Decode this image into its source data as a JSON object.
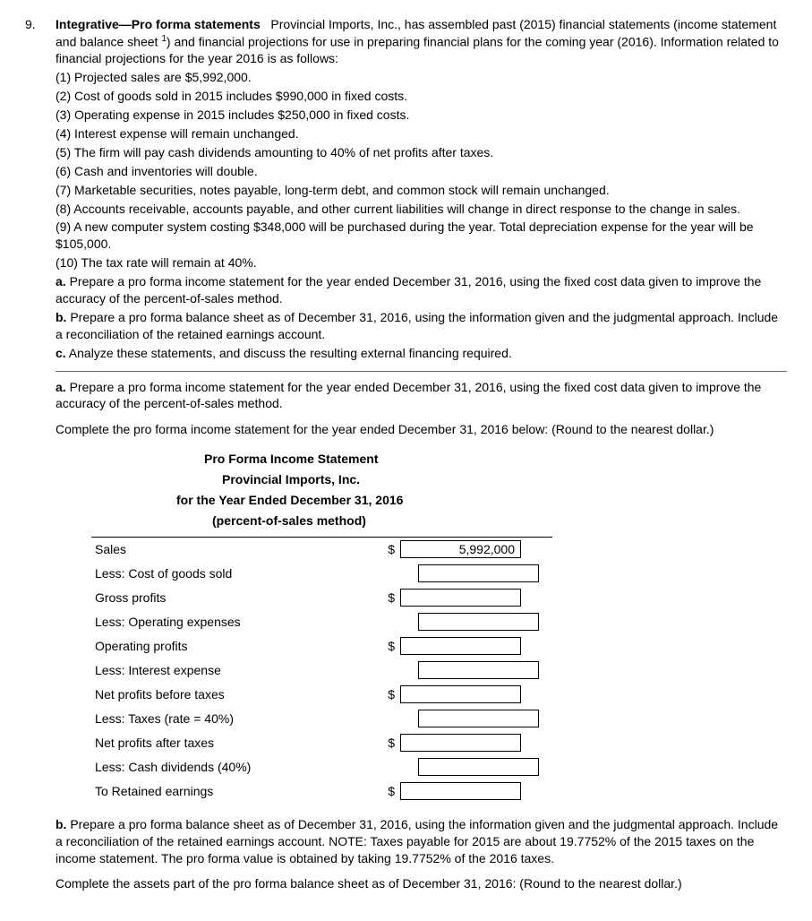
{
  "problem": {
    "number": "9.",
    "title": "Integrative—Pro forma statements",
    "intro_a": "Provincial Imports, Inc., has assembled past (2015) financial statements (income statement and balance sheet",
    "sup": "1",
    "intro_b": ") and financial projections for use in preparing financial plans for the coming year (2016). Information related to financial projections for the year 2016 is as follows:",
    "lines": [
      "(1) Projected sales are $5,992,000.",
      "(2) Cost of goods sold in 2015 includes $990,000 in fixed costs.",
      "(3) Operating expense in 2015 includes $250,000 in fixed costs.",
      "(4) Interest expense will remain unchanged.",
      "(5) The firm will pay cash dividends amounting to 40% of net profits after taxes.",
      "(6) Cash and inventories will double.",
      "(7) Marketable securities, notes payable, long-term debt, and common stock will remain unchanged.",
      "(8) Accounts receivable, accounts payable, and other current liabilities will change in direct response to the change in sales.",
      "(9) A new computer system costing $348,000 will be purchased during the year.  Total depreciation expense for the year will be $105,000.",
      "(10) The tax rate will remain at 40%."
    ],
    "task_a_label": "a.",
    "task_a": " Prepare a pro forma income statement for the year ended December 31, 2016, using the fixed cost data given to improve the accuracy of the percent-of-sales method.",
    "task_b_label": "b.",
    "task_b": " Prepare a pro forma balance sheet as of December 31, 2016, using the information given and the judgmental approach. Include a reconciliation of the retained earnings account.",
    "task_c_label": "c.",
    "task_c": " Analyze these statements, and discuss the resulting external financing required."
  },
  "section_a": {
    "label": "a.",
    "text": " Prepare a pro forma income statement for the year ended December 31, 2016, using the fixed cost data given to improve the accuracy of the percent-of-sales method.",
    "complete": "Complete the pro forma income statement for the year ended December 31, 2016 below:  (Round to the nearest dollar.)"
  },
  "statement": {
    "h1": "Pro Forma Income Statement",
    "h2": "Provincial Imports, Inc.",
    "h3": "for the Year Ended December 31, 2016",
    "h4": "(percent-of-sales method)",
    "rows": [
      {
        "label": "Sales",
        "dollar": "$",
        "value": "5,992,000",
        "indent": false
      },
      {
        "label": "Less: Cost of goods sold",
        "dollar": "",
        "value": "",
        "indent": true
      },
      {
        "label": "Gross profits",
        "dollar": "$",
        "value": "",
        "indent": false
      },
      {
        "label": "Less: Operating expenses",
        "dollar": "",
        "value": "",
        "indent": true
      },
      {
        "label": "Operating profits",
        "dollar": "$",
        "value": "",
        "indent": false
      },
      {
        "label": "Less: Interest expense",
        "dollar": "",
        "value": "",
        "indent": true
      },
      {
        "label": "Net profits before taxes",
        "dollar": "$",
        "value": "",
        "indent": false
      },
      {
        "label": "Less: Taxes (rate = 40%)",
        "dollar": "",
        "value": "",
        "indent": true
      },
      {
        "label": "Net profits after taxes",
        "dollar": "$",
        "value": "",
        "indent": false
      },
      {
        "label": "Less: Cash dividends (40%)",
        "dollar": "",
        "value": "",
        "indent": true
      },
      {
        "label": "To Retained earnings",
        "dollar": "$",
        "value": "",
        "indent": false
      }
    ]
  },
  "section_b": {
    "label": "b.",
    "text": " Prepare a pro forma balance sheet as of December 31, 2016, using the information given and the judgmental approach. Include a reconciliation of the retained earnings account.  NOTE: Taxes payable for 2015 are about 19.7752% of the 2015 taxes on the income statement. The pro forma value is obtained by taking 19.7752% of the 2016 taxes.",
    "complete": "Complete the assets part of the pro forma balance sheet as of December 31, 2016:  (Round to the nearest dollar.)"
  }
}
